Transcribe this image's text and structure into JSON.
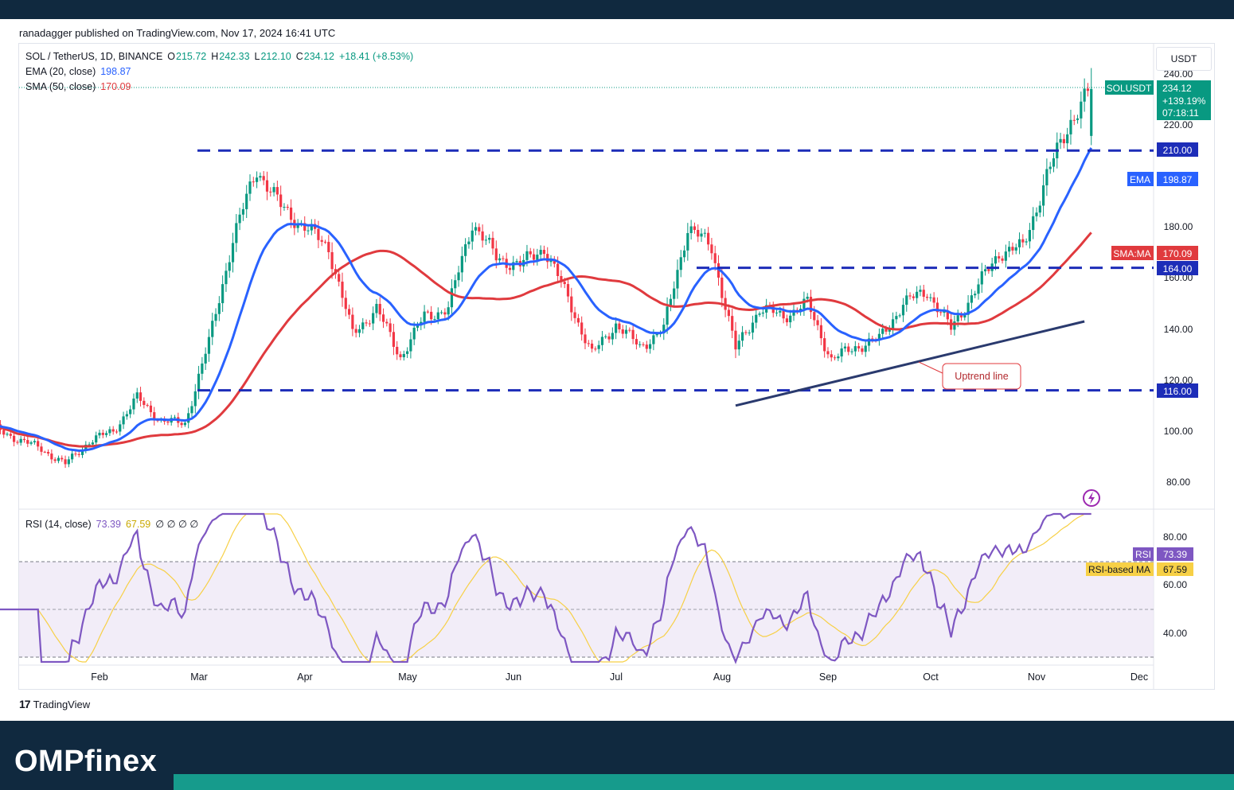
{
  "header": {
    "published": "ranadagger published on TradingView.com, Nov 17, 2024 16:41 UTC"
  },
  "legend": {
    "symbol": "SOL / TetherUS, 1D, BINANCE",
    "o_label": "O",
    "o": "215.72",
    "h_label": "H",
    "h": "242.33",
    "l_label": "L",
    "l": "212.10",
    "c_label": "C",
    "c": "234.12",
    "change": "+18.41 (+8.53%)",
    "ema_label": "EMA (20, close)",
    "ema_value": "198.87",
    "sma_label": "SMA (50, close)",
    "sma_value": "170.09",
    "rsi_label": "RSI (14, close)",
    "rsi_value": "73.39",
    "rsi_ma_value": "67.59",
    "rsi_extra": "∅  ∅  ∅  ∅"
  },
  "price_axis": {
    "currency": "USDT",
    "ticks": [
      "240.00",
      "220.00",
      "180.00",
      "160.00",
      "140.00",
      "120.00",
      "100.00",
      "80.00"
    ],
    "tags": {
      "symbol": "SOLUSDT",
      "price": "234.12",
      "change_pct": "+139.19%",
      "countdown": "07:18:11",
      "level_210": "210.00",
      "ema_name": "EMA",
      "ema": "198.87",
      "sma_name": "SMA:MA",
      "sma": "170.09",
      "level_164": "164.00",
      "level_116": "116.00"
    }
  },
  "rsi_axis": {
    "ticks": [
      "80.00",
      "60.00",
      "40.00"
    ],
    "tags": {
      "rsi_name": "RSI",
      "rsi": "73.39",
      "ma_name": "RSI-based MA",
      "ma": "67.59"
    }
  },
  "time_axis": [
    "Feb",
    "Mar",
    "Apr",
    "May",
    "Jun",
    "Jul",
    "Aug",
    "Sep",
    "Oct",
    "Nov",
    "Dec"
  ],
  "annotation": "Uptrend line",
  "watermark": "TradingView",
  "footer_brand": "OMPfinex",
  "colors": {
    "up": "#089981",
    "down": "#f23645",
    "ema": "#2962ff",
    "sma": "#e03a3e",
    "level_line": "#1d2db8",
    "trendline": "#2a3a6e",
    "rsi": "#7e57c2",
    "rsi_ma": "#f7d046",
    "footer": "#10293f",
    "accent": "#169b8c"
  },
  "chart_data": {
    "type": "candlestick",
    "symbol": "SOL / TetherUS",
    "interval": "1D",
    "last": {
      "open": 215.72,
      "high": 242.33,
      "low": 212.1,
      "close": 234.12,
      "change": 18.41,
      "change_pct": 8.53
    },
    "horizontal_levels": [
      210,
      164,
      116
    ],
    "trendline": {
      "from": {
        "date": "2024-08-05",
        "price": 110
      },
      "to": {
        "date": "2024-11-15",
        "price": 143
      }
    },
    "ylim": [
      75,
      245
    ],
    "rsi_ylim": [
      28,
      90
    ],
    "rsi_bands": [
      70,
      50,
      30
    ],
    "closes": [
      {
        "date": "2024-01-01",
        "close": 101
      },
      {
        "date": "2024-01-08",
        "close": 97
      },
      {
        "date": "2024-01-15",
        "close": 93
      },
      {
        "date": "2024-01-22",
        "close": 87
      },
      {
        "date": "2024-01-29",
        "close": 96
      },
      {
        "date": "2024-02-05",
        "close": 100
      },
      {
        "date": "2024-02-12",
        "close": 113
      },
      {
        "date": "2024-02-19",
        "close": 104
      },
      {
        "date": "2024-02-26",
        "close": 103
      },
      {
        "date": "2024-03-04",
        "close": 135
      },
      {
        "date": "2024-03-11",
        "close": 175
      },
      {
        "date": "2024-03-18",
        "close": 203
      },
      {
        "date": "2024-03-25",
        "close": 188
      },
      {
        "date": "2024-04-01",
        "close": 180
      },
      {
        "date": "2024-04-08",
        "close": 172
      },
      {
        "date": "2024-04-15",
        "close": 138
      },
      {
        "date": "2024-04-22",
        "close": 148
      },
      {
        "date": "2024-04-29",
        "close": 129
      },
      {
        "date": "2024-05-06",
        "close": 145
      },
      {
        "date": "2024-05-13",
        "close": 148
      },
      {
        "date": "2024-05-20",
        "close": 182
      },
      {
        "date": "2024-05-27",
        "close": 168
      },
      {
        "date": "2024-06-03",
        "close": 165
      },
      {
        "date": "2024-06-10",
        "close": 172
      },
      {
        "date": "2024-06-17",
        "close": 152
      },
      {
        "date": "2024-06-24",
        "close": 130
      },
      {
        "date": "2024-07-01",
        "close": 142
      },
      {
        "date": "2024-07-08",
        "close": 133
      },
      {
        "date": "2024-07-15",
        "close": 140
      },
      {
        "date": "2024-07-22",
        "close": 180
      },
      {
        "date": "2024-07-29",
        "close": 172
      },
      {
        "date": "2024-08-05",
        "close": 132
      },
      {
        "date": "2024-08-12",
        "close": 148
      },
      {
        "date": "2024-08-19",
        "close": 145
      },
      {
        "date": "2024-08-26",
        "close": 150
      },
      {
        "date": "2024-09-02",
        "close": 128
      },
      {
        "date": "2024-09-09",
        "close": 133
      },
      {
        "date": "2024-09-16",
        "close": 136
      },
      {
        "date": "2024-09-23",
        "close": 150
      },
      {
        "date": "2024-09-30",
        "close": 155
      },
      {
        "date": "2024-10-07",
        "close": 140
      },
      {
        "date": "2024-10-14",
        "close": 155
      },
      {
        "date": "2024-10-21",
        "close": 170
      },
      {
        "date": "2024-10-28",
        "close": 172
      },
      {
        "date": "2024-11-04",
        "close": 200
      },
      {
        "date": "2024-11-11",
        "close": 222
      },
      {
        "date": "2024-11-17",
        "close": 234.12
      }
    ],
    "series": [
      {
        "name": "EMA (20, close)",
        "last": 198.87
      },
      {
        "name": "SMA (50, close)",
        "last": 170.09
      },
      {
        "name": "RSI (14, close)",
        "last": 73.39
      },
      {
        "name": "RSI-based MA",
        "last": 67.59
      }
    ]
  }
}
